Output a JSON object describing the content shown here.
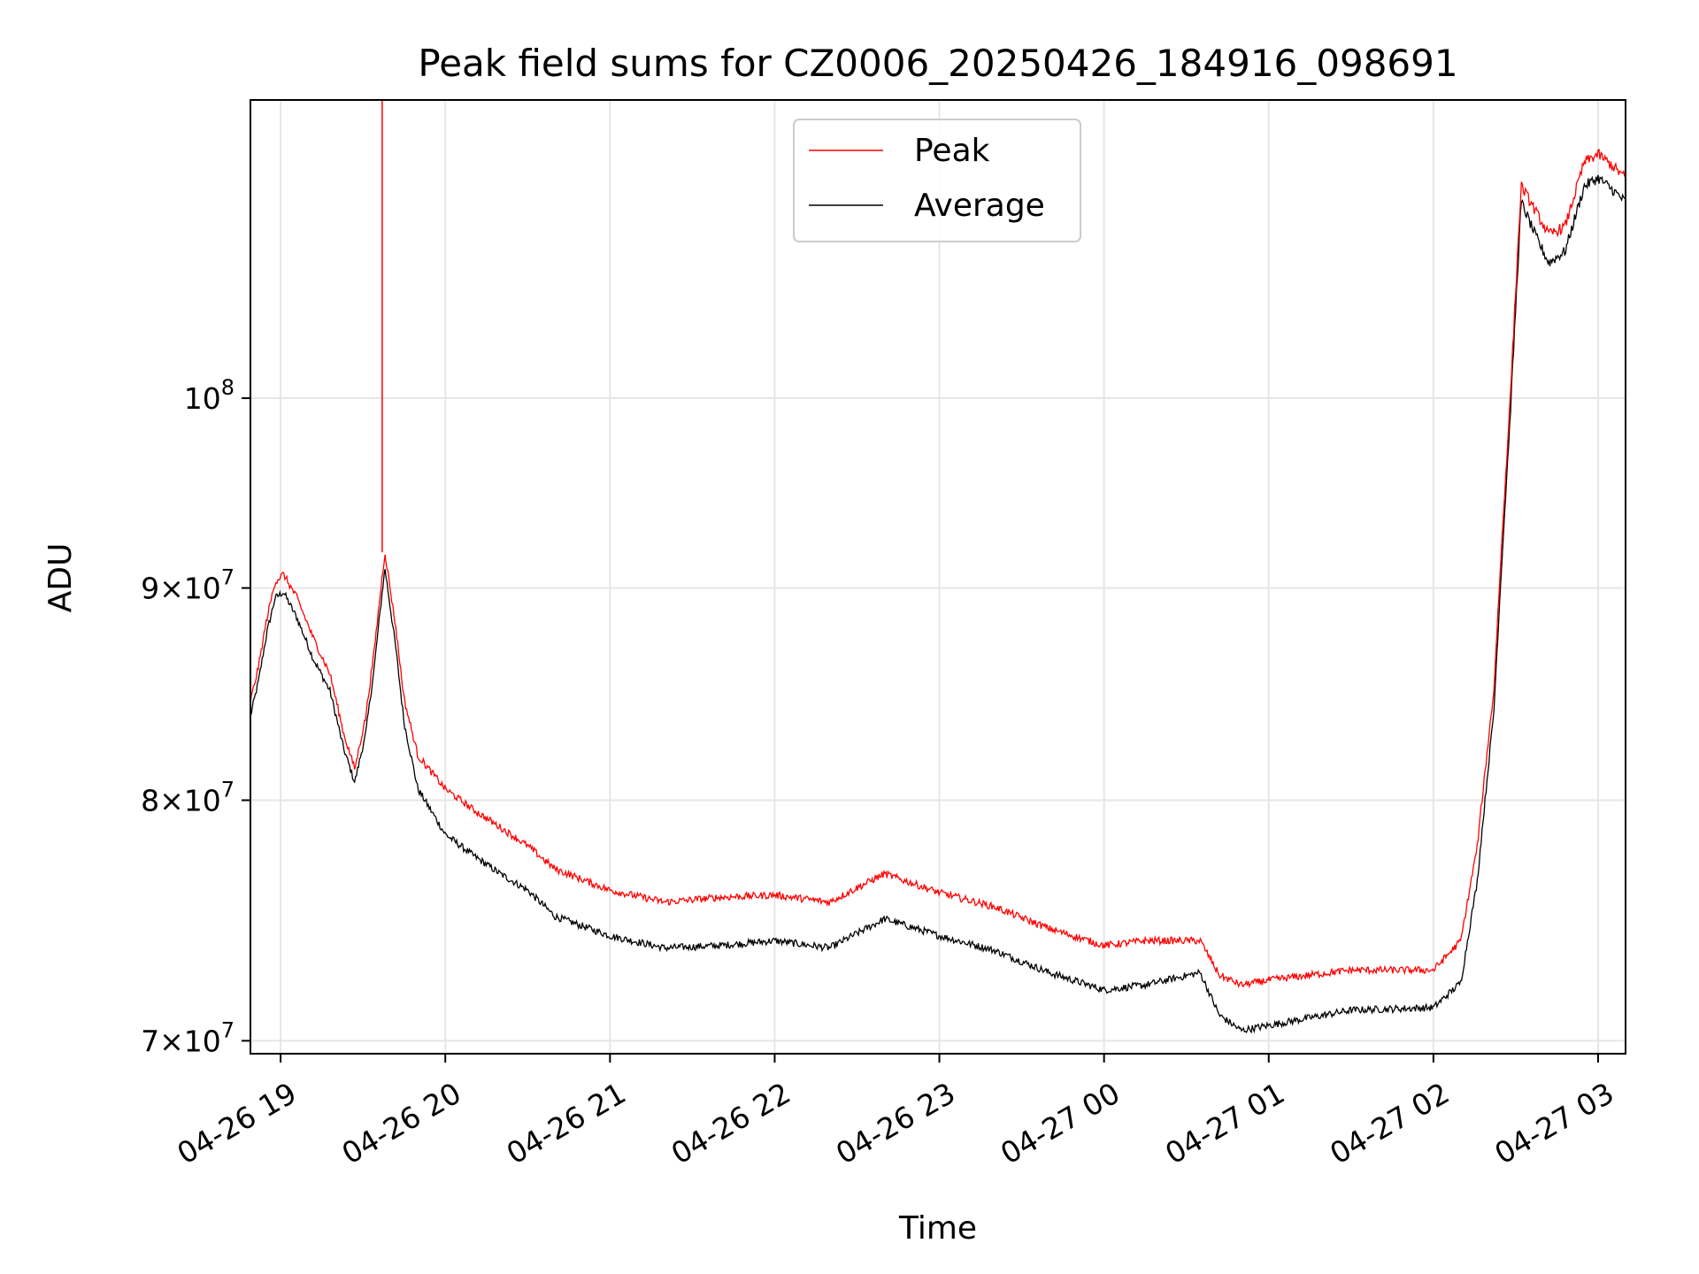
{
  "chart_data": {
    "type": "line",
    "title": "Peak field sums for CZ0006_20250426_184916_098691",
    "xlabel": "Time",
    "ylabel": "ADU",
    "yscale": "log",
    "grid": true,
    "legend_position": "top-center",
    "xlim": [
      "04-26 18:49",
      "04-27 03:10"
    ],
    "ylim": [
      69500000,
      118000000
    ],
    "x_ticks": [
      "04-26 19",
      "04-26 20",
      "04-26 21",
      "04-26 22",
      "04-26 23",
      "04-27 00",
      "04-27 01",
      "04-27 02",
      "04-27 03"
    ],
    "y_ticks": [
      {
        "value": 70000000,
        "mantissa": "7",
        "exponent": "7"
      },
      {
        "value": 80000000,
        "mantissa": "8",
        "exponent": "7"
      },
      {
        "value": 90000000,
        "mantissa": "9",
        "exponent": "7"
      },
      {
        "value": 100000000,
        "mantissa": "10",
        "exponent": "8"
      }
    ],
    "legend": [
      "Peak",
      "Average"
    ],
    "colors": {
      "Peak": "#ff0000",
      "Average": "#000000"
    },
    "series": [
      {
        "name": "Peak",
        "x": [
          "04-26 18:49",
          "04-26 18:52",
          "04-26 18:55",
          "04-26 18:58",
          "04-26 19:01",
          "04-26 19:06",
          "04-26 19:12",
          "04-26 19:18",
          "04-26 19:23",
          "04-26 19:27",
          "04-26 19:31",
          "04-26 19:34",
          "04-26 19:38",
          "04-26 19:42",
          "04-26 19:45",
          "04-26 19:50",
          "04-26 20:00",
          "04-26 20:10",
          "04-26 20:20",
          "04-26 20:30",
          "04-26 20:40",
          "04-26 21:00",
          "04-26 21:20",
          "04-26 21:40",
          "04-26 22:00",
          "04-26 22:20",
          "04-26 22:40",
          "04-26 23:00",
          "04-26 23:20",
          "04-26 23:40",
          "04-27 00:00",
          "04-27 00:15",
          "04-27 00:35",
          "04-27 00:42",
          "04-27 00:50",
          "04-27 01:00",
          "04-27 01:30",
          "04-27 02:00",
          "04-27 02:10",
          "04-27 02:16",
          "04-27 02:22",
          "04-27 02:28",
          "04-27 02:32",
          "04-27 02:37",
          "04-27 02:42",
          "04-27 02:48",
          "04-27 02:55",
          "04-27 03:00",
          "04-27 03:05",
          "04-27 03:10"
        ],
        "values": [
          84500000,
          86200000,
          88500000,
          90300000,
          90700000,
          89500000,
          87500000,
          85800000,
          83000000,
          81400000,
          83800000,
          86800000,
          91800000,
          88000000,
          84600000,
          82000000,
          80500000,
          79600000,
          78800000,
          78000000,
          77000000,
          76100000,
          75600000,
          75800000,
          75900000,
          75600000,
          76800000,
          76000000,
          75400000,
          74500000,
          73800000,
          74000000,
          74000000,
          72600000,
          72200000,
          72400000,
          72800000,
          72800000,
          74000000,
          78000000,
          85000000,
          100000000,
          112500000,
          111000000,
          109500000,
          110000000,
          114000000,
          114500000,
          113800000,
          113000000
        ]
      },
      {
        "name": "Average",
        "x": [
          "04-26 18:49",
          "04-26 18:52",
          "04-26 18:55",
          "04-26 18:58",
          "04-26 19:01",
          "04-26 19:06",
          "04-26 19:12",
          "04-26 19:18",
          "04-26 19:23",
          "04-26 19:27",
          "04-26 19:31",
          "04-26 19:34",
          "04-26 19:38",
          "04-26 19:42",
          "04-26 19:45",
          "04-26 19:50",
          "04-26 20:00",
          "04-26 20:10",
          "04-26 20:20",
          "04-26 20:30",
          "04-26 20:40",
          "04-26 21:00",
          "04-26 21:20",
          "04-26 21:40",
          "04-26 22:00",
          "04-26 22:20",
          "04-26 22:40",
          "04-26 23:00",
          "04-26 23:20",
          "04-26 23:40",
          "04-27 00:00",
          "04-27 00:15",
          "04-27 00:35",
          "04-27 00:42",
          "04-27 00:50",
          "04-27 01:00",
          "04-27 01:30",
          "04-27 02:00",
          "04-27 02:10",
          "04-27 02:16",
          "04-27 02:22",
          "04-27 02:28",
          "04-27 02:32",
          "04-27 02:37",
          "04-27 02:42",
          "04-27 02:48",
          "04-27 02:55",
          "04-27 03:00",
          "04-27 03:05",
          "04-27 03:10"
        ],
        "values": [
          83800000,
          85500000,
          87800000,
          89500000,
          89800000,
          88500000,
          86500000,
          85000000,
          82300000,
          80800000,
          83000000,
          86000000,
          91000000,
          87000000,
          83500000,
          80500000,
          78500000,
          77600000,
          76800000,
          76100000,
          75000000,
          74200000,
          73700000,
          73800000,
          74000000,
          73700000,
          74900000,
          74200000,
          73600000,
          72700000,
          72000000,
          72200000,
          72700000,
          71000000,
          70400000,
          70600000,
          71200000,
          71300000,
          72300000,
          76500000,
          84000000,
          99000000,
          111500000,
          109500000,
          107800000,
          108500000,
          112500000,
          113000000,
          112300000,
          111500000
        ]
      }
    ],
    "annotations": {
      "spike": {
        "series": "Peak",
        "x": "04-26 19:37",
        "value": "exceeds ylim"
      }
    }
  }
}
